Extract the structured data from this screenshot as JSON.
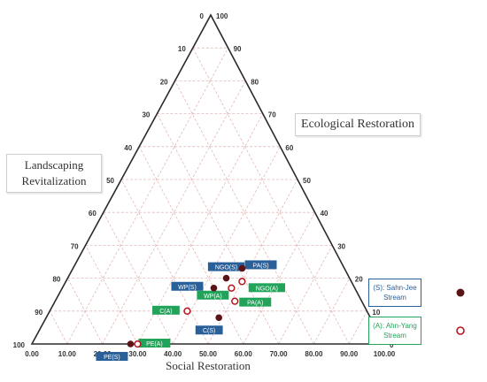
{
  "chart_data": {
    "type": "ternary-scatter",
    "axes": {
      "bottom": {
        "title": "Social Restoration",
        "ticks": [
          "0.00",
          "10.00",
          "20.00",
          "30.00",
          "40.00",
          "50.00",
          "60.00",
          "70.00",
          "80.00",
          "90.00",
          "100.00"
        ]
      },
      "right": {
        "title": "Ecological Restoration",
        "ticks": [
          "0",
          "10",
          "20",
          "30",
          "40",
          "50",
          "60",
          "70",
          "80",
          "90",
          "100"
        ]
      },
      "left": {
        "title": "Landscaping Revitalization",
        "ticks": [
          "0",
          "10",
          "20",
          "30",
          "40",
          "50",
          "60",
          "70",
          "80",
          "90",
          "100"
        ]
      }
    },
    "grid": true,
    "series": [
      {
        "marker": "filled",
        "points": [
          {
            "label": "NGO(S)",
            "social": 45,
            "ecological": 20,
            "landscaping": 35
          },
          {
            "label": "WP(S)",
            "social": 43,
            "ecological": 17,
            "landscaping": 40
          },
          {
            "label": "PA(S)",
            "social": 48,
            "ecological": 23,
            "landscaping": 29
          },
          {
            "label": "C(S)",
            "social": 49,
            "ecological": 8,
            "landscaping": 43
          },
          {
            "label": "PE(S)",
            "social": 28,
            "ecological": 0,
            "landscaping": 72
          }
        ]
      },
      {
        "marker": "hollow",
        "points": [
          {
            "label": "WP(A)",
            "social": 48,
            "ecological": 17,
            "landscaping": 35
          },
          {
            "label": "NGO(A)",
            "social": 50,
            "ecological": 19,
            "landscaping": 31
          },
          {
            "label": "C(A)",
            "social": 39,
            "ecological": 10,
            "landscaping": 51
          },
          {
            "label": "PA(A)",
            "social": 51,
            "ecological": 13,
            "landscaping": 36
          },
          {
            "label": "PE(A)",
            "social": 30,
            "ecological": 0,
            "landscaping": 70
          }
        ]
      }
    ],
    "legend": [
      {
        "text": "(S): Sahn-Jee Stream",
        "marker": "filled"
      },
      {
        "text": "(A): Ahn-Yang Stream",
        "marker": "hollow"
      }
    ]
  },
  "colors": {
    "frame": "#2b2b2b",
    "grid": "#e3b9b9",
    "filled_marker": "#5a1418",
    "hollow_marker_stroke": "#b3141c",
    "label_blue": "#2a6099",
    "label_green": "#22a35a"
  }
}
